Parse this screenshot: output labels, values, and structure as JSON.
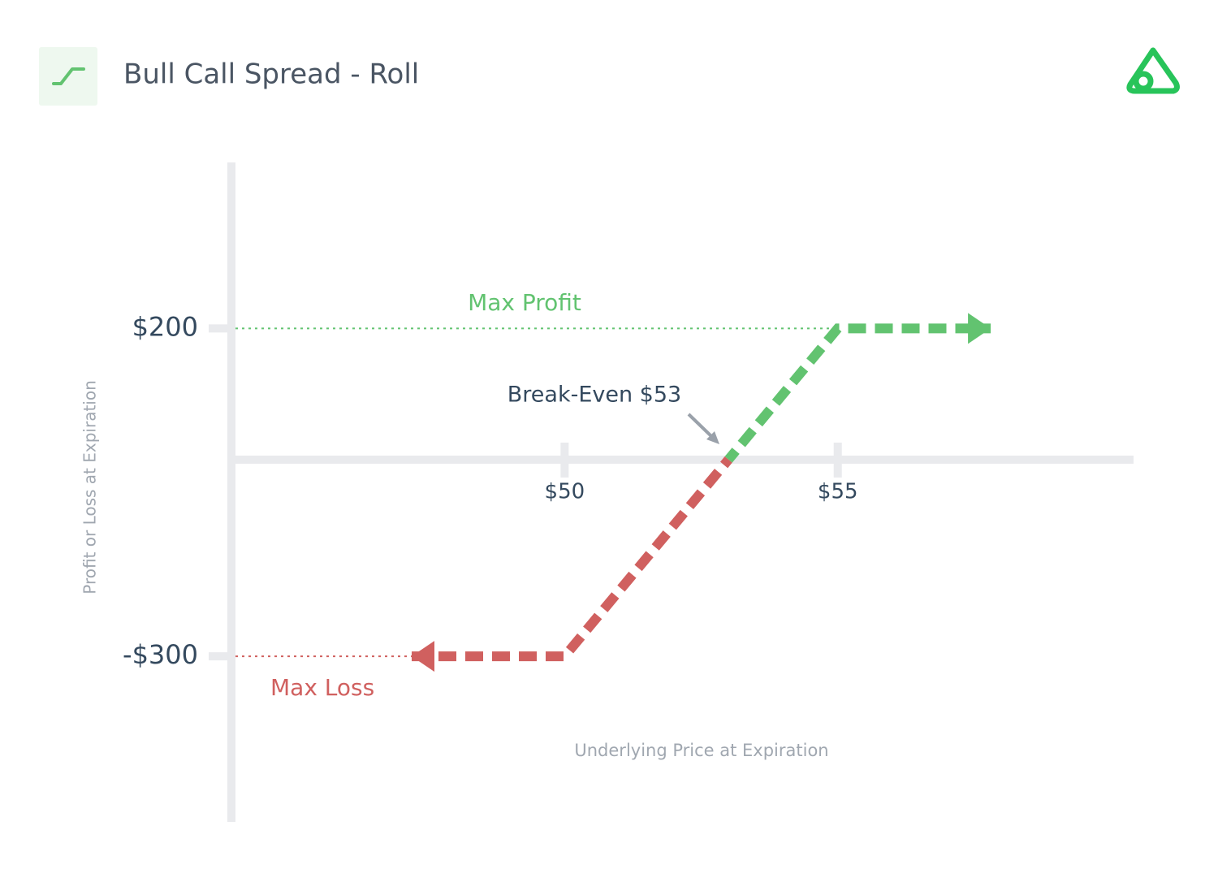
{
  "chart_data": {
    "type": "line",
    "title": "Bull Call Spread - Roll",
    "x_label": "Underlying Price at Expiration",
    "y_label": "Profit or Loss at Expiration",
    "annotation": "Break-Even $53",
    "x": [
      47.2,
      50,
      53,
      55,
      57.8
    ],
    "series": [
      {
        "name": "Max Loss",
        "color": "#d0605f",
        "values": [
          -300,
          -300,
          0,
          null,
          null
        ]
      },
      {
        "name": "Max Profit",
        "color": "#62c370",
        "values": [
          null,
          null,
          0,
          200,
          200
        ]
      }
    ],
    "xlim": [
      43.9,
      60.4
    ],
    "ylim": [
      -550,
      453
    ],
    "xticks": [
      {
        "value": 50,
        "label": "$50"
      },
      {
        "value": 55,
        "label": "$55"
      }
    ],
    "yticks": [
      {
        "value": 200,
        "label": "$200"
      },
      {
        "value": -300,
        "label": "-$300"
      }
    ]
  }
}
